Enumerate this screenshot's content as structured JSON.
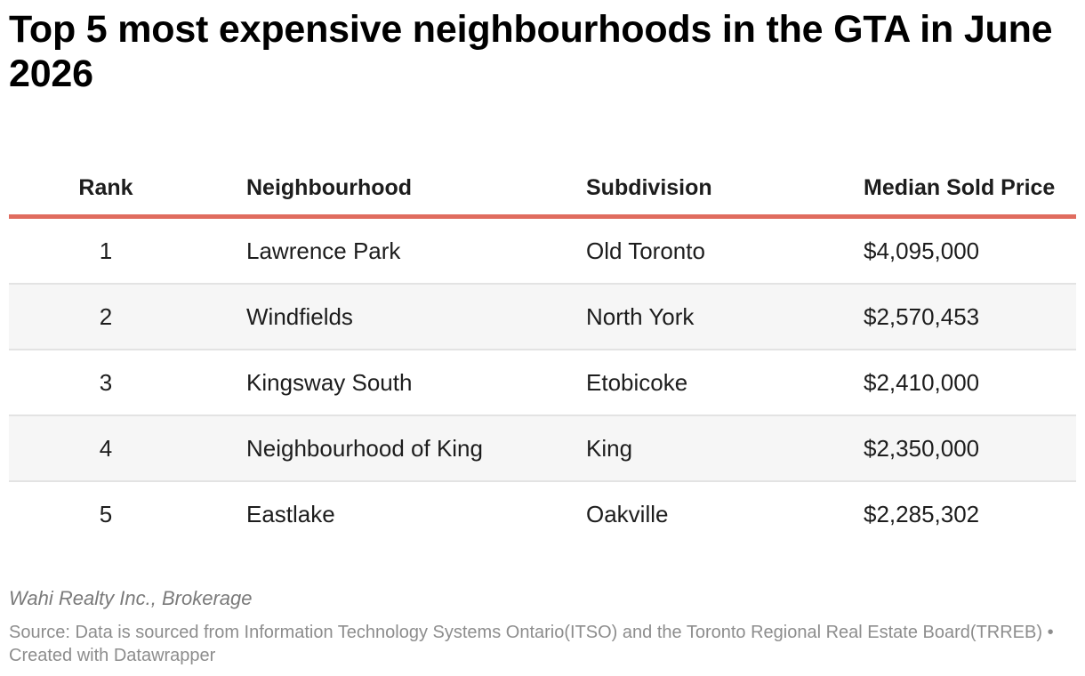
{
  "title": "Top 5 most expensive neighbourhoods in the GTA in June 2026",
  "chart_data": {
    "type": "table",
    "title": "Top 5 most expensive neighbourhoods in the GTA in June 2026",
    "columns": [
      "Rank",
      "Neighbourhood",
      "Subdivision",
      "Median Sold Price"
    ],
    "rows": [
      {
        "rank": "1",
        "neighbourhood": "Lawrence Park",
        "subdivision": "Old Toronto",
        "price": "$4,095,000"
      },
      {
        "rank": "2",
        "neighbourhood": "Windfields",
        "subdivision": "North York",
        "price": "$2,570,453"
      },
      {
        "rank": "3",
        "neighbourhood": "Kingsway South",
        "subdivision": "Etobicoke",
        "price": "$2,410,000"
      },
      {
        "rank": "4",
        "neighbourhood": "Neighbourhood of King",
        "subdivision": "King",
        "price": "$2,350,000"
      },
      {
        "rank": "5",
        "neighbourhood": "Eastlake",
        "subdivision": "Oakville",
        "price": "$2,285,302"
      }
    ],
    "values": [
      4095000,
      2570453,
      2410000,
      2350000,
      2285302
    ],
    "header_rule_color": "#e06c5f",
    "alt_row_color": "#f6f6f6"
  },
  "footer": {
    "byline": "Wahi Realty Inc., Brokerage",
    "source": "Source: Data is sourced from Information Technology Systems Ontario(ITSO) and the Toronto Regional Real Estate Board(TRREB) • Created with Datawrapper"
  }
}
